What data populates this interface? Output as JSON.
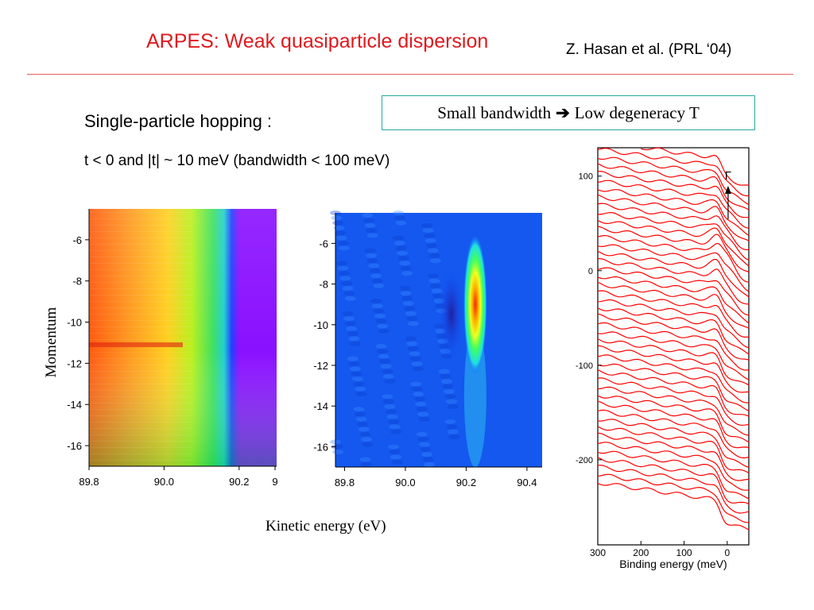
{
  "slide": {
    "title": "ARPES:  Weak quasiparticle dispersion",
    "citation": "Z. Hasan et al. (PRL ‘04)",
    "callout": {
      "left": "Small bandwidth",
      "arrow": "➔",
      "right": "Low degeneracy T"
    },
    "heading": "Single-particle hopping :",
    "condition": "t < 0  and  |t| ~ 10 meV (bandwidth < 100 meV)",
    "shared_xlabel": "Kinetic energy (eV)",
    "shared_ylabel": "Momentum"
  },
  "colors": {
    "title": "#e0191e",
    "callout_border": "#28a8a0",
    "edc_curves": "#ff0000",
    "rule": "#e06060"
  },
  "chart_data": [
    {
      "type": "heatmap",
      "description_role": "raw ARPES intensity map",
      "xlabel": "Kinetic energy (eV)",
      "ylabel": "Momentum",
      "x_ticks": [
        "89.8",
        "90.0",
        "90.2",
        "9"
      ],
      "y_ticks": [
        "-6",
        "-8",
        "-10",
        "-12",
        "-14",
        "-16"
      ],
      "xlim": [
        89.8,
        90.3
      ],
      "ylim": [
        -17,
        -4.5
      ],
      "colormap": "rainbow (red high, violet low)"
    },
    {
      "type": "heatmap",
      "description_role": "second-derivative ARPES map",
      "xlabel": "Kinetic energy (eV)",
      "ylabel": "Momentum",
      "x_ticks": [
        "89.8",
        "90.0",
        "90.2",
        "90.4"
      ],
      "y_ticks": [
        "-6",
        "-8",
        "-10",
        "-12",
        "-14",
        "-16"
      ],
      "xlim": [
        89.77,
        90.45
      ],
      "ylim": [
        -17,
        -4.5
      ],
      "peak_energy": 90.23,
      "peak_momentum": -9
    },
    {
      "type": "line",
      "description_role": "energy distribution curves (stacked)",
      "xlabel": "Binding energy (meV)",
      "x_ticks": [
        "300",
        "200",
        "100",
        "0"
      ],
      "y_ticks": [
        "100",
        "0",
        "-100",
        "-200"
      ],
      "xlim": [
        300,
        -50
      ],
      "ylim": [
        -290,
        130
      ],
      "annotation": "Γ",
      "curve_count": 44,
      "series_color": "#ff0000"
    }
  ]
}
